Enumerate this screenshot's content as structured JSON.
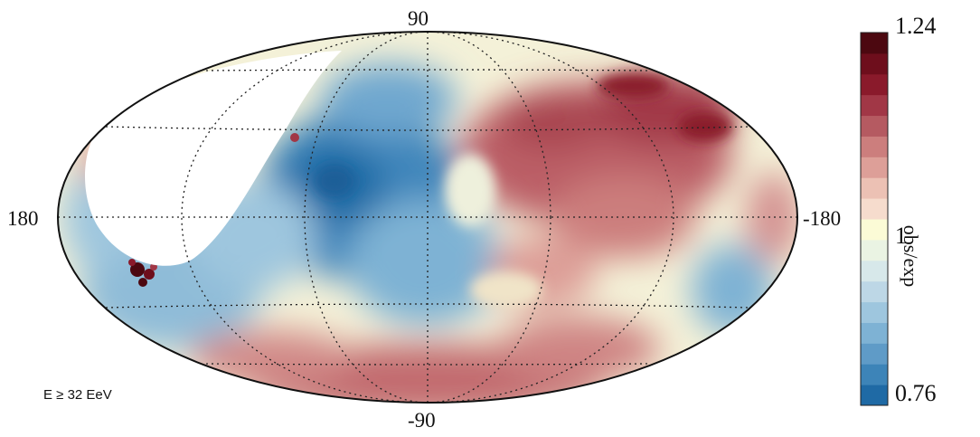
{
  "map": {
    "projection": "Hammer-Aitoff (equatorial coordinates)",
    "longitude_left": "180",
    "longitude_right": "-180",
    "latitude_top": "90",
    "latitude_bottom": "-90",
    "energy_label": "E ≥ 32 EeV",
    "graticule": "dotted, 30° spacing",
    "unexposed_region": "white crescent, upper left"
  },
  "colorbar": {
    "max_label": "1.24",
    "mid_label": "1",
    "min_label": "0.76",
    "title": "obs/exp",
    "colors": [
      "#1f6aa5",
      "#3d84b8",
      "#5f9bc7",
      "#7eb2d4",
      "#9ec6de",
      "#bdd7e6",
      "#d7e8ea",
      "#eaf3e3",
      "#fbfbd6",
      "#f6dccd",
      "#ecc1b4",
      "#dd9f98",
      "#cc7e7d",
      "#b55a61",
      "#a13746",
      "#8a1a2b",
      "#6e0e1c",
      "#4c0810"
    ]
  },
  "chart_data": {
    "type": "heatmap",
    "value_range": [
      0.76,
      1.24
    ],
    "neutral_value": 1,
    "colorbar_label": "obs/exp",
    "axes": {
      "longitude_labels": [
        "180",
        "-180"
      ],
      "latitude_labels": [
        "90",
        "-90"
      ]
    },
    "features": [
      {
        "region": "central-left sky",
        "tendency": "deficit",
        "approx_value": 0.82
      },
      {
        "region": "upper right sky",
        "tendency": "excess",
        "approx_value": 1.18
      },
      {
        "region": "lower band",
        "tendency": "excess",
        "approx_value": 1.1
      },
      {
        "region": "lower-left hotspot",
        "tendency": "strong excess",
        "approx_value": 1.24
      }
    ]
  }
}
